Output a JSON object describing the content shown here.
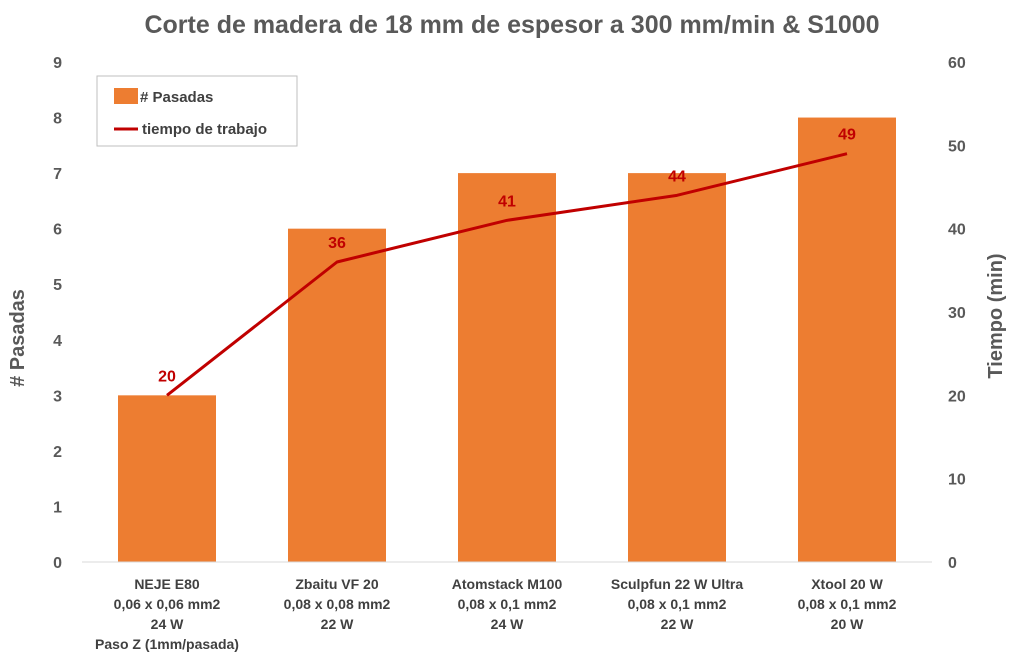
{
  "chart_data": {
    "type": "bar",
    "title": "Corte de madera de 18 mm de espesor a 300 mm/min & S1000",
    "ylabel": "# Pasadas",
    "y2label": "Tiempo (min)",
    "ylim": [
      0,
      9
    ],
    "y2lim": [
      0,
      60
    ],
    "yticks": [
      "0",
      "1",
      "2",
      "3",
      "4",
      "5",
      "6",
      "7",
      "8",
      "9"
    ],
    "y2ticks": [
      "0",
      "10",
      "20",
      "30",
      "40",
      "50",
      "60"
    ],
    "grid": false,
    "legend_position": "top-left",
    "categories": [
      {
        "lines": [
          "NEJE E80",
          "0,06 x 0,06 mm2",
          "24 W",
          "Paso Z (1mm/pasada)"
        ]
      },
      {
        "lines": [
          "Zbaitu VF 20",
          "0,08 x 0,08 mm2",
          "22 W"
        ]
      },
      {
        "lines": [
          "Atomstack M100",
          "0,08 x 0,1 mm2",
          "24 W"
        ]
      },
      {
        "lines": [
          "Sculpfun 22 W Ultra",
          "0,08 x 0,1 mm2",
          "22 W"
        ]
      },
      {
        "lines": [
          "Xtool 20 W",
          "0,08 x 0,1 mm2",
          "20 W"
        ]
      }
    ],
    "series": [
      {
        "name": "# Pasadas",
        "type": "bar",
        "axis": "left",
        "color": "#ED7D31",
        "values": [
          3,
          6,
          7,
          7,
          8
        ]
      },
      {
        "name": "tiempo de trabajo",
        "type": "line",
        "axis": "right",
        "color": "#C00000",
        "values": [
          20,
          36,
          41,
          44,
          49
        ],
        "data_labels": [
          "20",
          "36",
          "41",
          "44",
          "49"
        ]
      }
    ]
  }
}
